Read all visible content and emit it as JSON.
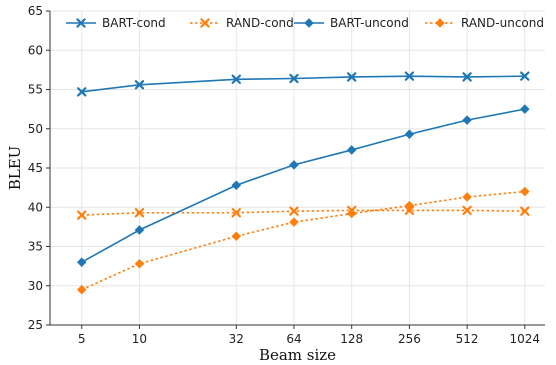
{
  "chart_data": {
    "type": "line",
    "xlabel": "Beam size",
    "ylabel": "BLEU",
    "x_scale": "log2",
    "x": [
      5,
      10,
      32,
      64,
      128,
      256,
      512,
      1024
    ],
    "x_tick_labels": [
      "5",
      "10",
      "32",
      "64",
      "128",
      "256",
      "512",
      "1024"
    ],
    "ylim": [
      25,
      65
    ],
    "y_ticks": [
      25,
      30,
      35,
      40,
      45,
      50,
      55,
      60,
      65
    ],
    "grid": true,
    "legend_position": "top",
    "series": [
      {
        "name": "BART-cond",
        "color": "#1f77b4",
        "line_style": "solid",
        "marker": "x",
        "values": [
          54.7,
          55.6,
          56.3,
          56.4,
          56.6,
          56.7,
          56.6,
          56.7
        ]
      },
      {
        "name": "RAND-cond",
        "color": "#ff7f0e",
        "line_style": "dotted",
        "marker": "x",
        "values": [
          39.0,
          39.3,
          39.3,
          39.5,
          39.6,
          39.6,
          39.6,
          39.5
        ]
      },
      {
        "name": "BART-uncond",
        "color": "#1f77b4",
        "line_style": "solid",
        "marker": "diamond",
        "values": [
          33.0,
          37.1,
          42.8,
          45.4,
          47.3,
          49.3,
          51.1,
          52.5
        ]
      },
      {
        "name": "RAND-uncond",
        "color": "#ff7f0e",
        "line_style": "dotted",
        "marker": "diamond",
        "values": [
          29.5,
          32.8,
          36.3,
          38.1,
          39.2,
          40.2,
          41.3,
          42.0
        ]
      }
    ]
  }
}
